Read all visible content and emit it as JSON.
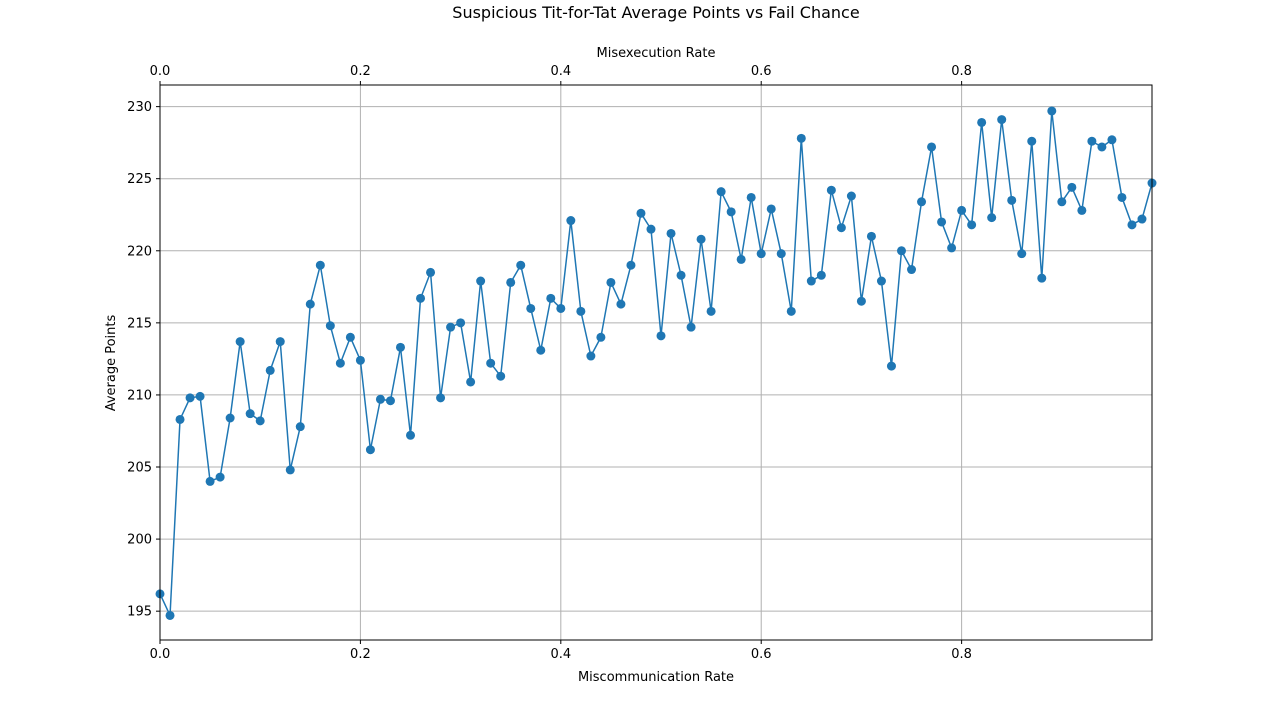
{
  "chart_data": {
    "type": "line",
    "title": "Suspicious Tit-for-Tat Average Points vs Fail Chance",
    "xlabel": "Miscommunication Rate",
    "x2label": "Misexecution Rate",
    "ylabel": "Average Points",
    "xlim": [
      0,
      0.99
    ],
    "ylim": [
      193,
      231.5
    ],
    "xticks": [
      0,
      0.2,
      0.4,
      0.6,
      0.8
    ],
    "xtick_labels": [
      "0.0",
      "0.2",
      "0.4",
      "0.6",
      "0.8"
    ],
    "yticks": [
      195,
      200,
      205,
      210,
      215,
      220,
      225,
      230
    ],
    "ytick_labels": [
      "195",
      "200",
      "205",
      "210",
      "215",
      "220",
      "225",
      "230"
    ],
    "grid": true,
    "line_color": "#1f77b4",
    "marker": "circle",
    "x": [
      0.0,
      0.01,
      0.02,
      0.03,
      0.04,
      0.05,
      0.06,
      0.07,
      0.08,
      0.09,
      0.1,
      0.11,
      0.12,
      0.13,
      0.14,
      0.15,
      0.16,
      0.17,
      0.18,
      0.19,
      0.2,
      0.21,
      0.22,
      0.23,
      0.24,
      0.25,
      0.26,
      0.27,
      0.28,
      0.29,
      0.3,
      0.31,
      0.32,
      0.33,
      0.34,
      0.35,
      0.36,
      0.37,
      0.38,
      0.39,
      0.4,
      0.41,
      0.42,
      0.43,
      0.44,
      0.45,
      0.46,
      0.47,
      0.48,
      0.49,
      0.5,
      0.51,
      0.52,
      0.53,
      0.54,
      0.55,
      0.56,
      0.57,
      0.58,
      0.59,
      0.6,
      0.61,
      0.62,
      0.63,
      0.64,
      0.65,
      0.66,
      0.67,
      0.68,
      0.69,
      0.7,
      0.71,
      0.72,
      0.73,
      0.74,
      0.75,
      0.76,
      0.77,
      0.78,
      0.79,
      0.8,
      0.81,
      0.82,
      0.83,
      0.84,
      0.85,
      0.86,
      0.87,
      0.88,
      0.89,
      0.9,
      0.91,
      0.92,
      0.93,
      0.94,
      0.95,
      0.96,
      0.97,
      0.98,
      0.99
    ],
    "y": [
      196.2,
      194.7,
      208.3,
      209.8,
      209.9,
      204.0,
      204.3,
      208.4,
      213.7,
      208.7,
      208.2,
      211.7,
      213.7,
      204.8,
      207.8,
      216.3,
      219.0,
      214.8,
      212.2,
      214.0,
      212.4,
      206.2,
      209.7,
      209.6,
      213.3,
      207.2,
      216.7,
      218.5,
      209.8,
      214.7,
      215.0,
      210.9,
      217.9,
      212.2,
      211.3,
      217.8,
      219.0,
      216.0,
      213.1,
      216.7,
      216.0,
      222.1,
      215.8,
      212.7,
      214.0,
      217.8,
      216.3,
      219.0,
      222.6,
      221.5,
      214.1,
      221.2,
      218.3,
      214.7,
      220.8,
      215.8,
      224.1,
      222.7,
      219.4,
      223.7,
      219.8,
      222.9,
      219.8,
      215.8,
      227.8,
      217.9,
      218.3,
      224.2,
      221.6,
      223.8,
      216.5,
      221.0,
      217.9,
      212.0,
      220.0,
      218.7,
      223.4,
      227.2,
      222.0,
      220.2,
      222.8,
      221.8,
      228.9,
      222.3,
      229.1,
      223.5,
      219.8,
      227.6,
      218.1,
      229.7,
      223.4,
      224.4,
      222.8,
      227.6,
      227.2,
      227.7,
      223.7,
      221.8,
      222.2,
      224.7
    ]
  }
}
